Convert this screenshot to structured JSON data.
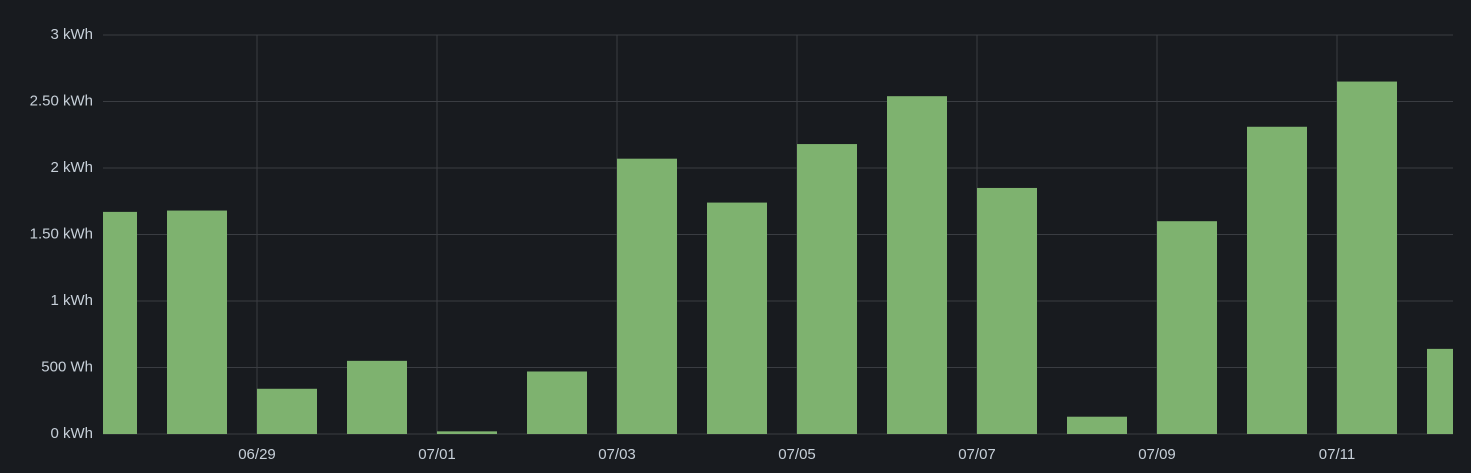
{
  "chart_data": {
    "type": "bar",
    "categories": [
      null,
      null,
      "06/29",
      null,
      "07/01",
      null,
      "07/03",
      null,
      "07/05",
      null,
      "07/07",
      null,
      "07/09",
      null,
      "07/11",
      null
    ],
    "values": [
      1.67,
      1.68,
      0.34,
      0.55,
      0.02,
      0.47,
      2.07,
      1.74,
      2.18,
      2.54,
      1.85,
      0.13,
      1.6,
      2.31,
      2.65,
      0.64
    ],
    "color": "#7eb26f",
    "ylim": [
      0,
      3
    ],
    "yticks": [
      {
        "value": 0,
        "label": "0 kWh"
      },
      {
        "value": 0.5,
        "label": "500 Wh"
      },
      {
        "value": 1,
        "label": "1 kWh"
      },
      {
        "value": 1.5,
        "label": "1.50 kWh"
      },
      {
        "value": 2,
        "label": "2 kWh"
      },
      {
        "value": 2.5,
        "label": "2.50 kWh"
      },
      {
        "value": 3,
        "label": "3 kWh"
      }
    ],
    "grid": true
  }
}
